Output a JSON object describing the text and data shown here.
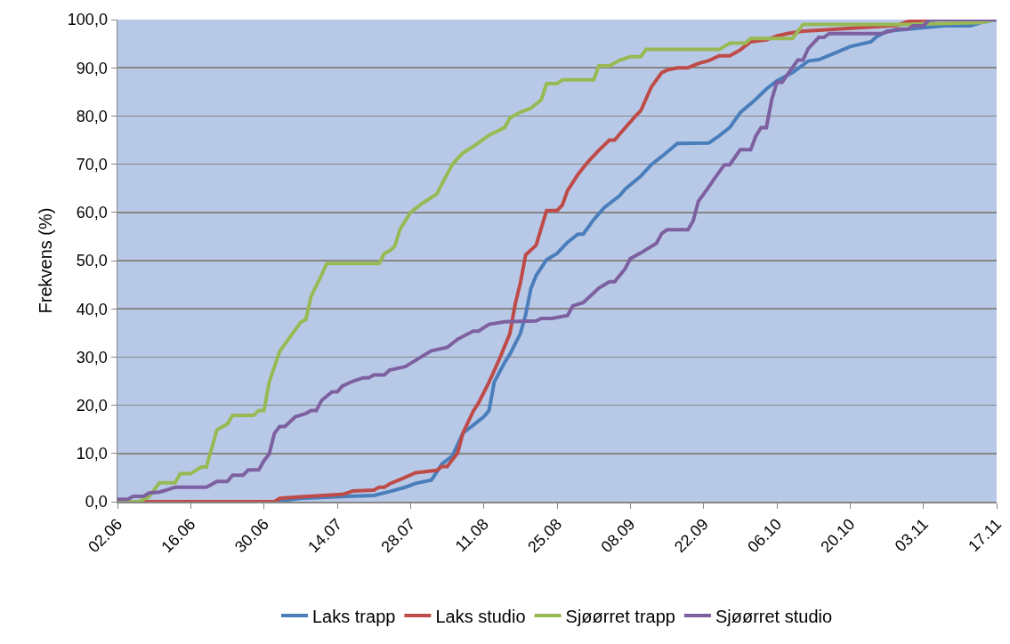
{
  "chart_data": {
    "type": "line",
    "ylabel": "Frekvens (%)",
    "xlim": [
      "--06-02",
      "--11-17"
    ],
    "xticks": [
      {
        "value": "--06-02",
        "label": "02.06"
      },
      {
        "value": "--06-16",
        "label": "16.06"
      },
      {
        "value": "--06-30",
        "label": "30.06"
      },
      {
        "value": "--07-14",
        "label": "14.07"
      },
      {
        "value": "--07-28",
        "label": "28.07"
      },
      {
        "value": "--08-11",
        "label": "11.08"
      },
      {
        "value": "--08-25",
        "label": "25.08"
      },
      {
        "value": "--09-08",
        "label": "08.09"
      },
      {
        "value": "--09-22",
        "label": "22.09"
      },
      {
        "value": "--10-06",
        "label": "06.10"
      },
      {
        "value": "--10-20",
        "label": "20.10"
      },
      {
        "value": "--11-03",
        "label": "03.11"
      },
      {
        "value": "--11-17",
        "label": "17.11"
      }
    ],
    "ylim": [
      0,
      100
    ],
    "yticks": [
      {
        "value": 0,
        "label": "0,0"
      },
      {
        "value": 10,
        "label": "10,0"
      },
      {
        "value": 20,
        "label": "20,0"
      },
      {
        "value": 30,
        "label": "30,0"
      },
      {
        "value": 40,
        "label": "40,0"
      },
      {
        "value": 50,
        "label": "50,0"
      },
      {
        "value": 60,
        "label": "60,0"
      },
      {
        "value": 70,
        "label": "70,0"
      },
      {
        "value": 80,
        "label": "80,0"
      },
      {
        "value": 90,
        "label": "90,0"
      },
      {
        "value": 100,
        "label": "100,0"
      }
    ],
    "grid": "y",
    "legend": "bottom",
    "marker": "none",
    "line_style": "solid",
    "series": [
      {
        "name": "Laks trapp",
        "color": "#4a7ebb",
        "x": [
          "--06-02",
          "--07-02",
          "--07-07",
          "--07-16",
          "--07-21",
          "--07-24",
          "--07-27",
          "--07-29",
          "--08-01",
          "--08-03",
          "--08-05",
          "--08-07",
          "--08-09",
          "--08-11",
          "--08-12",
          "--08-13",
          "--08-15",
          "--08-16",
          "--08-18",
          "--08-19",
          "--08-20",
          "--08-21",
          "--08-23",
          "--08-25",
          "--08-27",
          "--08-29",
          "--08-30",
          "--09-01",
          "--09-03",
          "--09-06",
          "--09-07",
          "--09-10",
          "--09-12",
          "--09-14",
          "--09-17",
          "--09-23",
          "--09-25",
          "--09-27",
          "--09-29",
          "--10-02",
          "--10-04",
          "--10-06",
          "--10-09",
          "--10-12",
          "--10-14",
          "--10-17",
          "--10-20",
          "--10-24",
          "--10-25",
          "--10-27",
          "--11-01",
          "--11-07",
          "--11-12",
          "--11-14",
          "--11-17"
        ],
        "values": [
          0,
          0,
          0.7,
          1.1,
          1.3,
          2.1,
          3,
          3.8,
          4.5,
          7.8,
          9.5,
          14.2,
          15.9,
          17.6,
          18.9,
          24.8,
          28.9,
          30.6,
          34.9,
          38.8,
          44.2,
          46.9,
          50.2,
          51.5,
          53.8,
          55.5,
          55.5,
          58.5,
          61,
          63.5,
          64.8,
          67.5,
          69.9,
          71.6,
          74.3,
          74.4,
          75.9,
          77.6,
          80.7,
          83.5,
          85.6,
          87.3,
          89,
          91.4,
          91.7,
          93,
          94.4,
          95.4,
          96.4,
          97.6,
          98.1,
          98.7,
          98.7,
          99.4,
          100
        ]
      },
      {
        "name": "Laks studio",
        "color": "#be4b48",
        "x": [
          "--06-02",
          "--07-02",
          "--07-03",
          "--07-07",
          "--07-15",
          "--07-17",
          "--07-21",
          "--07-22",
          "--07-23",
          "--07-24",
          "--07-26",
          "--07-29",
          "--08-02",
          "--08-03",
          "--08-04",
          "--08-06",
          "--08-07",
          "--08-09",
          "--08-10",
          "--08-12",
          "--08-14",
          "--08-16",
          "--08-17",
          "--08-18",
          "--08-19",
          "--08-21",
          "--08-23",
          "--08-25",
          "--08-26",
          "--08-27",
          "--08-29",
          "--08-31",
          "--09-02",
          "--09-04",
          "--09-05",
          "--09-06",
          "--09-09",
          "--09-10",
          "--09-12",
          "--09-14",
          "--09-15",
          "--09-17",
          "--09-19",
          "--09-21",
          "--09-23",
          "--09-25",
          "--09-27",
          "--09-29",
          "--10-01",
          "--10-04",
          "--10-06",
          "--10-08",
          "--10-11",
          "--10-14",
          "--10-29",
          "--10-31",
          "--11-04"
        ],
        "values": [
          0,
          0,
          0.7,
          1,
          1.5,
          2.2,
          2.4,
          3,
          3,
          3.7,
          4.6,
          6,
          6.5,
          7.3,
          7.3,
          10.1,
          14.2,
          18.8,
          20.5,
          24.8,
          29.6,
          34.9,
          41,
          45.4,
          51.2,
          53.2,
          60.4,
          60.4,
          61.5,
          64.5,
          67.9,
          70.6,
          72.9,
          75,
          75,
          76.3,
          80,
          81.1,
          86,
          89,
          89.5,
          90,
          90,
          90.9,
          91.5,
          92.5,
          92.5,
          93.7,
          95.4,
          95.8,
          96.6,
          97.1,
          97.6,
          97.8,
          98.8,
          99.6,
          100
        ]
      },
      {
        "name": "Sjøørret trapp",
        "color": "#98b954",
        "x": [
          "--06-02",
          "--06-06",
          "--06-08",
          "--06-10",
          "--06-13",
          "--06-14",
          "--06-16",
          "--06-18",
          "--06-19",
          "--06-21",
          "--06-23",
          "--06-24",
          "--06-28",
          "--06-29",
          "--06-30",
          "--07-01",
          "--07-03",
          "--07-05",
          "--07-07",
          "--07-08",
          "--07-09",
          "--07-11",
          "--07-12",
          "--07-22",
          "--07-23",
          "--07-24",
          "--07-25",
          "--07-26",
          "--07-28",
          "--07-30",
          "--07-31",
          "--08-02",
          "--08-05",
          "--08-07",
          "--08-09",
          "--08-12",
          "--08-15",
          "--08-16",
          "--08-18",
          "--08-20",
          "--08-22",
          "--08-23",
          "--08-25",
          "--08-26",
          "--09-01",
          "--09-02",
          "--09-04",
          "--09-06",
          "--09-08",
          "--09-10",
          "--09-11",
          "--09-25",
          "--09-27",
          "--09-30",
          "--10-01",
          "--10-09",
          "--10-11",
          "--10-31",
          "--11-14",
          "--11-17"
        ],
        "values": [
          0,
          0,
          1,
          3.9,
          3.9,
          5.8,
          5.8,
          7.2,
          7.2,
          14.9,
          16.1,
          17.9,
          17.9,
          18.9,
          18.9,
          24.8,
          31.2,
          34.2,
          37.2,
          37.8,
          42.6,
          47,
          49.4,
          49.4,
          51.5,
          52,
          53,
          56.5,
          60,
          61.7,
          62.4,
          63.8,
          70,
          72.3,
          73.7,
          76,
          77.6,
          79.6,
          80.8,
          81.6,
          83.4,
          86.7,
          86.7,
          87.5,
          87.5,
          90.4,
          90.4,
          91.6,
          92.3,
          92.3,
          93.8,
          93.8,
          95.1,
          95.1,
          96.1,
          96.1,
          99,
          99,
          99.4,
          100
        ]
      },
      {
        "name": "Sjøørret studio",
        "color": "#7d60a0",
        "x": [
          "--06-02",
          "--06-04",
          "--06-05",
          "--06-07",
          "--06-08",
          "--06-10",
          "--06-11",
          "--06-13",
          "--06-19",
          "--06-21",
          "--06-23",
          "--06-24",
          "--06-26",
          "--06-27",
          "--06-29",
          "--06-30",
          "--07-01",
          "--07-02",
          "--07-03",
          "--07-04",
          "--07-06",
          "--07-08",
          "--07-09",
          "--07-10",
          "--07-11",
          "--07-13",
          "--07-14",
          "--07-15",
          "--07-17",
          "--07-19",
          "--07-20",
          "--07-21",
          "--07-23",
          "--07-24",
          "--07-27",
          "--07-30",
          "--08-01",
          "--08-04",
          "--08-06",
          "--08-09",
          "--08-10",
          "--08-12",
          "--08-15",
          "--08-21",
          "--08-22",
          "--08-24",
          "--08-27",
          "--08-28",
          "--08-30",
          "--09-01",
          "--09-02",
          "--09-04",
          "--09-05",
          "--09-07",
          "--09-08",
          "--09-10",
          "--09-13",
          "--09-14",
          "--09-15",
          "--09-19",
          "--09-20",
          "--09-21",
          "--09-23",
          "--09-24",
          "--09-26",
          "--09-27",
          "--09-29",
          "--10-01",
          "--10-02",
          "--10-03",
          "--10-04",
          "--10-05",
          "--10-06",
          "--10-07",
          "--10-10",
          "--10-11",
          "--10-12",
          "--10-14",
          "--10-15",
          "--10-16",
          "--10-26",
          "--10-29",
          "--10-31",
          "--11-01",
          "--11-03",
          "--11-04",
          "--11-06",
          "--11-17"
        ],
        "values": [
          0.5,
          0.5,
          1.1,
          1.1,
          1.8,
          2,
          2.3,
          3,
          3,
          4.2,
          4.2,
          5.5,
          5.5,
          6.6,
          6.6,
          8.5,
          9.9,
          14.2,
          15.6,
          15.6,
          17.6,
          18.3,
          18.9,
          18.9,
          21,
          22.8,
          22.8,
          24,
          25,
          25.7,
          25.7,
          26.3,
          26.3,
          27.3,
          28,
          30,
          31.3,
          32,
          33.7,
          35.4,
          35.4,
          36.8,
          37.3,
          37.5,
          38,
          38,
          38.6,
          40.6,
          41.3,
          43.3,
          44.3,
          45.6,
          45.6,
          48.3,
          50.4,
          51.6,
          53.6,
          55.6,
          56.4,
          56.4,
          58.2,
          62.3,
          65.3,
          66.9,
          69.9,
          69.9,
          73,
          73,
          75.9,
          77.6,
          77.6,
          83.3,
          87,
          87,
          91.6,
          91.6,
          94,
          96.3,
          96.3,
          97.1,
          97.1,
          98,
          98,
          98.7,
          98.7,
          99.8,
          100,
          100
        ]
      }
    ]
  }
}
